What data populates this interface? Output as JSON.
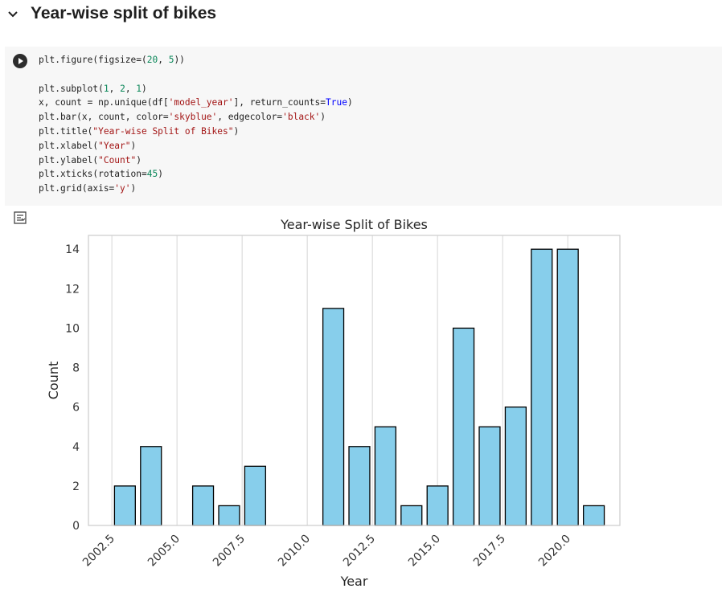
{
  "section": {
    "title": "Year-wise split of bikes"
  },
  "code_cell": {
    "lines": [
      [
        {
          "t": "plt.figure(figsize=(",
          "c": "fn"
        },
        {
          "t": "20",
          "c": "num"
        },
        {
          "t": ", ",
          "c": "fn"
        },
        {
          "t": "5",
          "c": "num"
        },
        {
          "t": "))",
          "c": "fn"
        }
      ],
      [],
      [
        {
          "t": "plt.subplot(",
          "c": "fn"
        },
        {
          "t": "1",
          "c": "num"
        },
        {
          "t": ", ",
          "c": "fn"
        },
        {
          "t": "2",
          "c": "num"
        },
        {
          "t": ", ",
          "c": "fn"
        },
        {
          "t": "1",
          "c": "num"
        },
        {
          "t": ")",
          "c": "fn"
        }
      ],
      [
        {
          "t": "x, count = np.unique(df[",
          "c": "fn"
        },
        {
          "t": "'model_year'",
          "c": "str"
        },
        {
          "t": "], return_counts=",
          "c": "fn"
        },
        {
          "t": "True",
          "c": "kw"
        },
        {
          "t": ")",
          "c": "fn"
        }
      ],
      [
        {
          "t": "plt.bar(x, count, color=",
          "c": "fn"
        },
        {
          "t": "'skyblue'",
          "c": "str"
        },
        {
          "t": ", edgecolor=",
          "c": "fn"
        },
        {
          "t": "'black'",
          "c": "str"
        },
        {
          "t": ")",
          "c": "fn"
        }
      ],
      [
        {
          "t": "plt.title(",
          "c": "fn"
        },
        {
          "t": "\"Year-wise Split of Bikes\"",
          "c": "str"
        },
        {
          "t": ")",
          "c": "fn"
        }
      ],
      [
        {
          "t": "plt.xlabel(",
          "c": "fn"
        },
        {
          "t": "\"Year\"",
          "c": "str"
        },
        {
          "t": ")",
          "c": "fn"
        }
      ],
      [
        {
          "t": "plt.ylabel(",
          "c": "fn"
        },
        {
          "t": "\"Count\"",
          "c": "str"
        },
        {
          "t": ")",
          "c": "fn"
        }
      ],
      [
        {
          "t": "plt.xticks(rotation=",
          "c": "fn"
        },
        {
          "t": "45",
          "c": "num"
        },
        {
          "t": ")",
          "c": "fn"
        }
      ],
      [
        {
          "t": "plt.grid(axis=",
          "c": "fn"
        },
        {
          "t": "'y'",
          "c": "str"
        },
        {
          "t": ")",
          "c": "fn"
        }
      ]
    ]
  },
  "icons": {
    "collapse": "chevron-down-icon",
    "run": "play-icon",
    "output": "output-toggle-icon"
  },
  "colors": {
    "bar_fill": "#87ceeb",
    "bar_edge": "#000000",
    "grid": "#dddddd",
    "axes_edge": "#cccccc"
  },
  "chart_data": {
    "type": "bar",
    "title": "Year-wise Split of Bikes",
    "xlabel": "Year",
    "ylabel": "Count",
    "x": [
      2003,
      2004,
      2006,
      2007,
      2008,
      2011,
      2012,
      2013,
      2014,
      2015,
      2016,
      2017,
      2018,
      2019,
      2020,
      2021
    ],
    "values": [
      2,
      4,
      2,
      1,
      3,
      11,
      4,
      5,
      1,
      2,
      10,
      5,
      6,
      14,
      14,
      1
    ],
    "xlim": [
      2001.6,
      2022.0
    ],
    "ylim": [
      0,
      14.7
    ],
    "xticks": [
      2002.5,
      2005.0,
      2007.5,
      2010.0,
      2012.5,
      2015.0,
      2017.5,
      2020.0
    ],
    "xtick_labels": [
      "2002.5",
      "2005.0",
      "2007.5",
      "2010.0",
      "2012.5",
      "2015.0",
      "2017.5",
      "2020.0"
    ],
    "yticks": [
      0,
      2,
      4,
      6,
      8,
      10,
      12,
      14
    ],
    "ytick_labels": [
      "0",
      "2",
      "4",
      "6",
      "8",
      "10",
      "12",
      "14"
    ],
    "xtick_rotation": 45,
    "bar_width": 0.8,
    "grid": "x-gridlines",
    "legend": "none"
  }
}
